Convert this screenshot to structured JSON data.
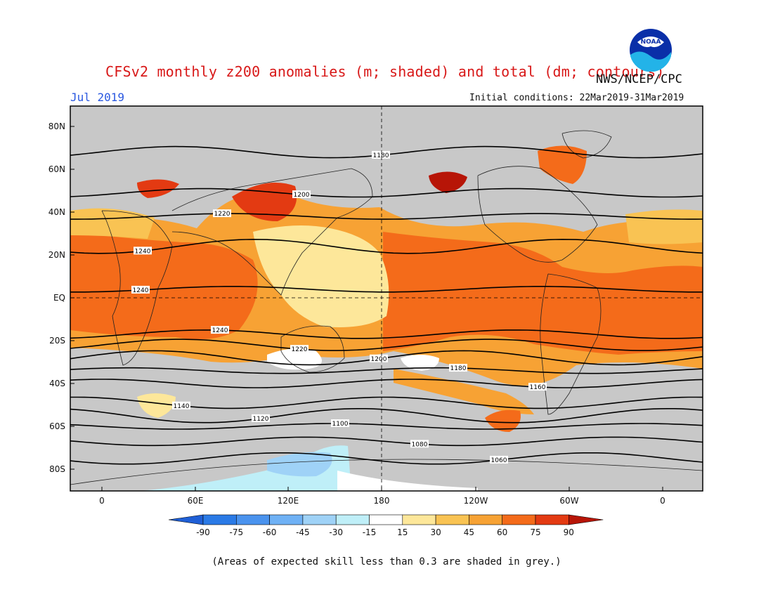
{
  "header": {
    "title": "CFSv2 monthly z200 anomalies (m; shaded) and total (dm; contours)",
    "month": "Jul 2019",
    "initial_conditions": "Initial conditions: 22Mar2019-31Mar2019",
    "agency": "NWS/NCEP/CPC",
    "logo_text": "NOAA"
  },
  "footnote": "(Areas of expected skill less than 0.3 are shaded in grey.)",
  "map": {
    "lat_labels": [
      "80N",
      "60N",
      "40N",
      "20N",
      "EQ",
      "20S",
      "40S",
      "60S",
      "80S"
    ],
    "lon_labels": [
      "0",
      "60E",
      "120E",
      "180",
      "120W",
      "60W",
      "0"
    ],
    "skill_mask_color": "#c8c8c8",
    "contours": [
      {
        "value": 1240,
        "lat": 4,
        "label": "1240"
      },
      {
        "value": 1240,
        "lat": -17,
        "label": "1240"
      },
      {
        "value": 1220,
        "lat": -22,
        "label": "1220"
      },
      {
        "value": 1200,
        "lat": -28,
        "label": "1200"
      },
      {
        "value": 1180,
        "lat": -34,
        "label": "1180"
      },
      {
        "value": 1160,
        "lat": -40,
        "label": "1160"
      },
      {
        "value": 1140,
        "lat": -49,
        "label": "1140"
      },
      {
        "value": 1120,
        "lat": -55,
        "label": "1120"
      },
      {
        "value": 1100,
        "lat": -60,
        "label": "1100"
      },
      {
        "value": 1080,
        "lat": -67,
        "label": "1080"
      },
      {
        "value": 1060,
        "lat": -75,
        "label": "1060"
      },
      {
        "value": 1240,
        "lat": 24,
        "label": "1240"
      },
      {
        "value": 1220,
        "lat": 38,
        "label": "1220"
      },
      {
        "value": 1200,
        "lat": 49,
        "label": "1200"
      },
      {
        "value": 1180,
        "lat": 68,
        "label": "1180"
      }
    ]
  },
  "colorbar": {
    "labels": [
      "-90",
      "-75",
      "-60",
      "-45",
      "-30",
      "-15",
      "15",
      "30",
      "45",
      "60",
      "75",
      "90"
    ],
    "colors": [
      "#1f5fd6",
      "#2a7ae6",
      "#4a93ee",
      "#6fb1f5",
      "#9fd2f7",
      "#bfeff8",
      "#ffffff",
      "#fde79a",
      "#f9c353",
      "#f7a234",
      "#f46b1a",
      "#e33a12",
      "#b71507"
    ]
  }
}
